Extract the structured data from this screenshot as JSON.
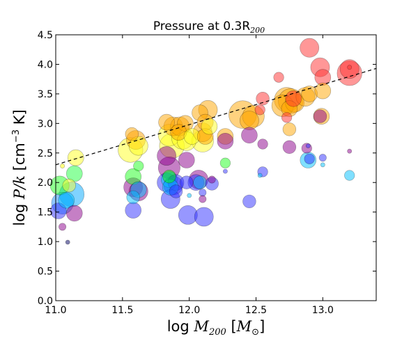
{
  "chart_data": {
    "type": "scatter",
    "title": "Pressure at 0.3R",
    "title_subscript": "200",
    "xlabel_prefix": "log ",
    "xlabel_var": "M",
    "xlabel_sub": "200",
    "xlabel_unit_open": " [",
    "xlabel_unit_var": "M",
    "xlabel_unit_sub": "⊙",
    "xlabel_unit_close": "]",
    "ylabel_prefix": "log ",
    "ylabel_var": "P/k",
    "ylabel_unit": " [cm",
    "ylabel_exp": "−3",
    "ylabel_unit_end": " K]",
    "xlim": [
      11.0,
      13.4
    ],
    "ylim": [
      0.0,
      4.5
    ],
    "xticks": [
      {
        "v": 11.0,
        "label": "11.0"
      },
      {
        "v": 11.5,
        "label": "11.5"
      },
      {
        "v": 12.0,
        "label": "12.0"
      },
      {
        "v": 12.5,
        "label": "12.5"
      },
      {
        "v": 13.0,
        "label": "13.0"
      }
    ],
    "yticks": [
      {
        "v": 0.0,
        "label": "0.0"
      },
      {
        "v": 0.5,
        "label": "0.5"
      },
      {
        "v": 1.0,
        "label": "1.0"
      },
      {
        "v": 1.5,
        "label": "1.5"
      },
      {
        "v": 2.0,
        "label": "2.0"
      },
      {
        "v": 2.5,
        "label": "2.5"
      },
      {
        "v": 3.0,
        "label": "3.0"
      },
      {
        "v": 3.5,
        "label": "3.5"
      },
      {
        "v": 4.0,
        "label": "4.0"
      },
      {
        "v": 4.5,
        "label": "4.5"
      }
    ],
    "fit_line": {
      "style": "dashed",
      "color": "#000000",
      "x": [
        11.0,
        13.4
      ],
      "y": [
        2.3,
        3.93
      ]
    },
    "point_size_scale": {
      "min_value": 1,
      "max_value": 10
    },
    "points": [
      {
        "x": 11.02,
        "y": 1.52,
        "s": 5,
        "c": "#3030ff"
      },
      {
        "x": 11.05,
        "y": 1.65,
        "s": 7,
        "c": "#2090ff"
      },
      {
        "x": 11.08,
        "y": 1.7,
        "s": 5,
        "c": "#00c0ff"
      },
      {
        "x": 11.12,
        "y": 1.8,
        "s": 8,
        "c": "#00a8ff"
      },
      {
        "x": 11.03,
        "y": 1.95,
        "s": 6,
        "c": "#20ff20"
      },
      {
        "x": 11.1,
        "y": 1.95,
        "s": 4,
        "c": "#ffff30"
      },
      {
        "x": 11.14,
        "y": 2.15,
        "s": 5,
        "c": "#20ff40"
      },
      {
        "x": 11.15,
        "y": 2.42,
        "s": 5,
        "c": "#ffff20"
      },
      {
        "x": 11.14,
        "y": 1.48,
        "s": 5,
        "c": "#8b008b"
      },
      {
        "x": 11.05,
        "y": 1.25,
        "s": 2,
        "c": "#8b008b"
      },
      {
        "x": 11.05,
        "y": 2.28,
        "s": 1,
        "c": "#ffff00"
      },
      {
        "x": 11.09,
        "y": 0.99,
        "s": 1,
        "c": "#000060"
      },
      {
        "x": 11.57,
        "y": 2.82,
        "s": 4,
        "c": "#ffa500"
      },
      {
        "x": 11.6,
        "y": 2.72,
        "s": 6,
        "c": "#ffa000"
      },
      {
        "x": 11.56,
        "y": 2.55,
        "s": 8,
        "c": "#ffff20"
      },
      {
        "x": 11.62,
        "y": 2.62,
        "s": 6,
        "c": "#ffff20"
      },
      {
        "x": 11.62,
        "y": 2.28,
        "s": 3,
        "c": "#20ff20"
      },
      {
        "x": 11.58,
        "y": 2.1,
        "s": 5,
        "c": "#20ff20"
      },
      {
        "x": 11.58,
        "y": 1.92,
        "s": 6,
        "c": "#8b008b"
      },
      {
        "x": 11.62,
        "y": 1.85,
        "s": 6,
        "c": "#8b008b"
      },
      {
        "x": 11.62,
        "y": 1.88,
        "s": 5,
        "c": "#00bfff"
      },
      {
        "x": 11.58,
        "y": 1.75,
        "s": 4,
        "c": "#00c0ff"
      },
      {
        "x": 11.58,
        "y": 1.53,
        "s": 5,
        "c": "#3030ff"
      },
      {
        "x": 11.83,
        "y": 3.02,
        "s": 5,
        "c": "#ffa500"
      },
      {
        "x": 11.88,
        "y": 2.95,
        "s": 6,
        "c": "#ffa500"
      },
      {
        "x": 11.93,
        "y": 2.95,
        "s": 6,
        "c": "#ffa500"
      },
      {
        "x": 11.97,
        "y": 3.0,
        "s": 5,
        "c": "#ffa500"
      },
      {
        "x": 11.85,
        "y": 2.8,
        "s": 7,
        "c": "#ffff20"
      },
      {
        "x": 11.92,
        "y": 2.85,
        "s": 5,
        "c": "#ffa500"
      },
      {
        "x": 11.95,
        "y": 2.75,
        "s": 7,
        "c": "#ffff20"
      },
      {
        "x": 11.87,
        "y": 2.62,
        "s": 8,
        "c": "#ffff20"
      },
      {
        "x": 11.98,
        "y": 2.7,
        "s": 6,
        "c": "#ffff20"
      },
      {
        "x": 12.02,
        "y": 2.78,
        "s": 5,
        "c": "#ffff20"
      },
      {
        "x": 11.83,
        "y": 2.45,
        "s": 6,
        "c": "#8b008b"
      },
      {
        "x": 11.85,
        "y": 2.25,
        "s": 7,
        "c": "#8b008b"
      },
      {
        "x": 11.98,
        "y": 2.38,
        "s": 5,
        "c": "#8b008b"
      },
      {
        "x": 11.85,
        "y": 2.1,
        "s": 4,
        "c": "#00ff00"
      },
      {
        "x": 11.85,
        "y": 2.05,
        "s": 5,
        "c": "#00c0ff"
      },
      {
        "x": 11.83,
        "y": 2.0,
        "s": 6,
        "c": "#3030ff"
      },
      {
        "x": 11.88,
        "y": 1.95,
        "s": 6,
        "c": "#3030ff"
      },
      {
        "x": 11.9,
        "y": 2.0,
        "s": 5,
        "c": "#3030ff"
      },
      {
        "x": 11.86,
        "y": 1.92,
        "s": 5,
        "c": "#00c0ff"
      },
      {
        "x": 11.86,
        "y": 1.72,
        "s": 6,
        "c": "#3030ff"
      },
      {
        "x": 11.9,
        "y": 1.85,
        "s": 4,
        "c": "#3030ff"
      },
      {
        "x": 11.98,
        "y": 2.0,
        "s": 4,
        "c": "#3030ff"
      },
      {
        "x": 11.99,
        "y": 1.45,
        "s": 6,
        "c": "#3030ff"
      },
      {
        "x": 12.0,
        "y": 1.78,
        "s": 1,
        "c": "#00c0ff"
      },
      {
        "x": 12.05,
        "y": 2.0,
        "s": 5,
        "c": "#3030ff"
      },
      {
        "x": 12.07,
        "y": 2.05,
        "s": 6,
        "c": "#8b008b"
      },
      {
        "x": 12.08,
        "y": 2.0,
        "s": 4,
        "c": "#00c0ff"
      },
      {
        "x": 12.1,
        "y": 1.83,
        "s": 2,
        "c": "#3030ff"
      },
      {
        "x": 12.1,
        "y": 1.72,
        "s": 2,
        "c": "#8b008b"
      },
      {
        "x": 12.11,
        "y": 1.42,
        "s": 6,
        "c": "#3030ff"
      },
      {
        "x": 12.17,
        "y": 1.98,
        "s": 4,
        "c": "#3030ff"
      },
      {
        "x": 12.17,
        "y": 2.05,
        "s": 2,
        "c": "#8b008b"
      },
      {
        "x": 12.08,
        "y": 3.18,
        "s": 5,
        "c": "#ffa500"
      },
      {
        "x": 12.14,
        "y": 3.23,
        "s": 6,
        "c": "#ffa500"
      },
      {
        "x": 12.12,
        "y": 3.02,
        "s": 5,
        "c": "#ffa500"
      },
      {
        "x": 12.1,
        "y": 2.85,
        "s": 6,
        "c": "#ffa500"
      },
      {
        "x": 12.12,
        "y": 2.78,
        "s": 5,
        "c": "#ffa500"
      },
      {
        "x": 12.1,
        "y": 2.7,
        "s": 7,
        "c": "#ffff20"
      },
      {
        "x": 12.15,
        "y": 2.95,
        "s": 5,
        "c": "#ffff20"
      },
      {
        "x": 12.27,
        "y": 2.78,
        "s": 5,
        "c": "#ffa500"
      },
      {
        "x": 12.27,
        "y": 2.7,
        "s": 5,
        "c": "#8b008b"
      },
      {
        "x": 12.27,
        "y": 2.33,
        "s": 3,
        "c": "#20ff20"
      },
      {
        "x": 12.27,
        "y": 2.19,
        "s": 1,
        "c": "#3030ff"
      },
      {
        "x": 12.4,
        "y": 3.15,
        "s": 9,
        "c": "#ffa500"
      },
      {
        "x": 12.48,
        "y": 3.12,
        "s": 7,
        "c": "#ffa500"
      },
      {
        "x": 12.45,
        "y": 3.05,
        "s": 6,
        "c": "#ffa500"
      },
      {
        "x": 12.45,
        "y": 2.8,
        "s": 5,
        "c": "#8b008b"
      },
      {
        "x": 12.55,
        "y": 3.42,
        "s": 4,
        "c": "#ff3030"
      },
      {
        "x": 12.53,
        "y": 3.23,
        "s": 3,
        "c": "#ff3030"
      },
      {
        "x": 12.55,
        "y": 2.65,
        "s": 3,
        "c": "#8b008b"
      },
      {
        "x": 12.55,
        "y": 2.18,
        "s": 3,
        "c": "#3030ff"
      },
      {
        "x": 12.45,
        "y": 1.68,
        "s": 4,
        "c": "#3030ff"
      },
      {
        "x": 12.53,
        "y": 2.12,
        "s": 1,
        "c": "#00c0ff"
      },
      {
        "x": 12.67,
        "y": 3.78,
        "s": 3,
        "c": "#ff3030"
      },
      {
        "x": 12.7,
        "y": 3.3,
        "s": 7,
        "c": "#ffa500"
      },
      {
        "x": 12.73,
        "y": 3.4,
        "s": 8,
        "c": "#ffa500"
      },
      {
        "x": 12.76,
        "y": 3.38,
        "s": 8,
        "c": "#ffa500"
      },
      {
        "x": 12.79,
        "y": 3.35,
        "s": 6,
        "c": "#ffa500"
      },
      {
        "x": 12.75,
        "y": 3.25,
        "s": 5,
        "c": "#ffa500"
      },
      {
        "x": 12.73,
        "y": 3.1,
        "s": 3,
        "c": "#ff3030"
      },
      {
        "x": 12.78,
        "y": 3.42,
        "s": 5,
        "c": "#ff3030"
      },
      {
        "x": 12.75,
        "y": 2.9,
        "s": 4,
        "c": "#ffa500"
      },
      {
        "x": 12.75,
        "y": 2.6,
        "s": 4,
        "c": "#8b008b"
      },
      {
        "x": 12.87,
        "y": 3.45,
        "s": 6,
        "c": "#ffa500"
      },
      {
        "x": 12.9,
        "y": 3.5,
        "s": 5,
        "c": "#ffa500"
      },
      {
        "x": 12.9,
        "y": 4.28,
        "s": 6,
        "c": "#ff3030"
      },
      {
        "x": 12.98,
        "y": 3.95,
        "s": 6,
        "c": "#ff3030"
      },
      {
        "x": 13.0,
        "y": 3.78,
        "s": 5,
        "c": "#ff3030"
      },
      {
        "x": 13.0,
        "y": 3.55,
        "s": 5,
        "c": "#ffa500"
      },
      {
        "x": 12.99,
        "y": 3.12,
        "s": 5,
        "c": "#ffa500"
      },
      {
        "x": 12.98,
        "y": 3.12,
        "s": 4,
        "c": "#8b008b"
      },
      {
        "x": 12.89,
        "y": 2.62,
        "s": 1,
        "c": "#3030ff"
      },
      {
        "x": 12.88,
        "y": 2.58,
        "s": 3,
        "c": "#8b008b"
      },
      {
        "x": 12.9,
        "y": 2.4,
        "s": 3,
        "c": "#3030ff"
      },
      {
        "x": 12.89,
        "y": 2.38,
        "s": 5,
        "c": "#00c0ff"
      },
      {
        "x": 13.0,
        "y": 2.42,
        "s": 2,
        "c": "#3030ff"
      },
      {
        "x": 13.0,
        "y": 2.3,
        "s": 1,
        "c": "#00c0ff"
      },
      {
        "x": 13.2,
        "y": 3.85,
        "s": 8,
        "c": "#ff3030"
      },
      {
        "x": 13.2,
        "y": 3.92,
        "s": 6,
        "c": "#ff3030"
      },
      {
        "x": 13.2,
        "y": 3.95,
        "s": 1,
        "c": "#ff3030"
      },
      {
        "x": 13.2,
        "y": 2.53,
        "s": 1,
        "c": "#8b008b"
      },
      {
        "x": 13.2,
        "y": 2.12,
        "s": 3,
        "c": "#00c0ff"
      }
    ]
  }
}
